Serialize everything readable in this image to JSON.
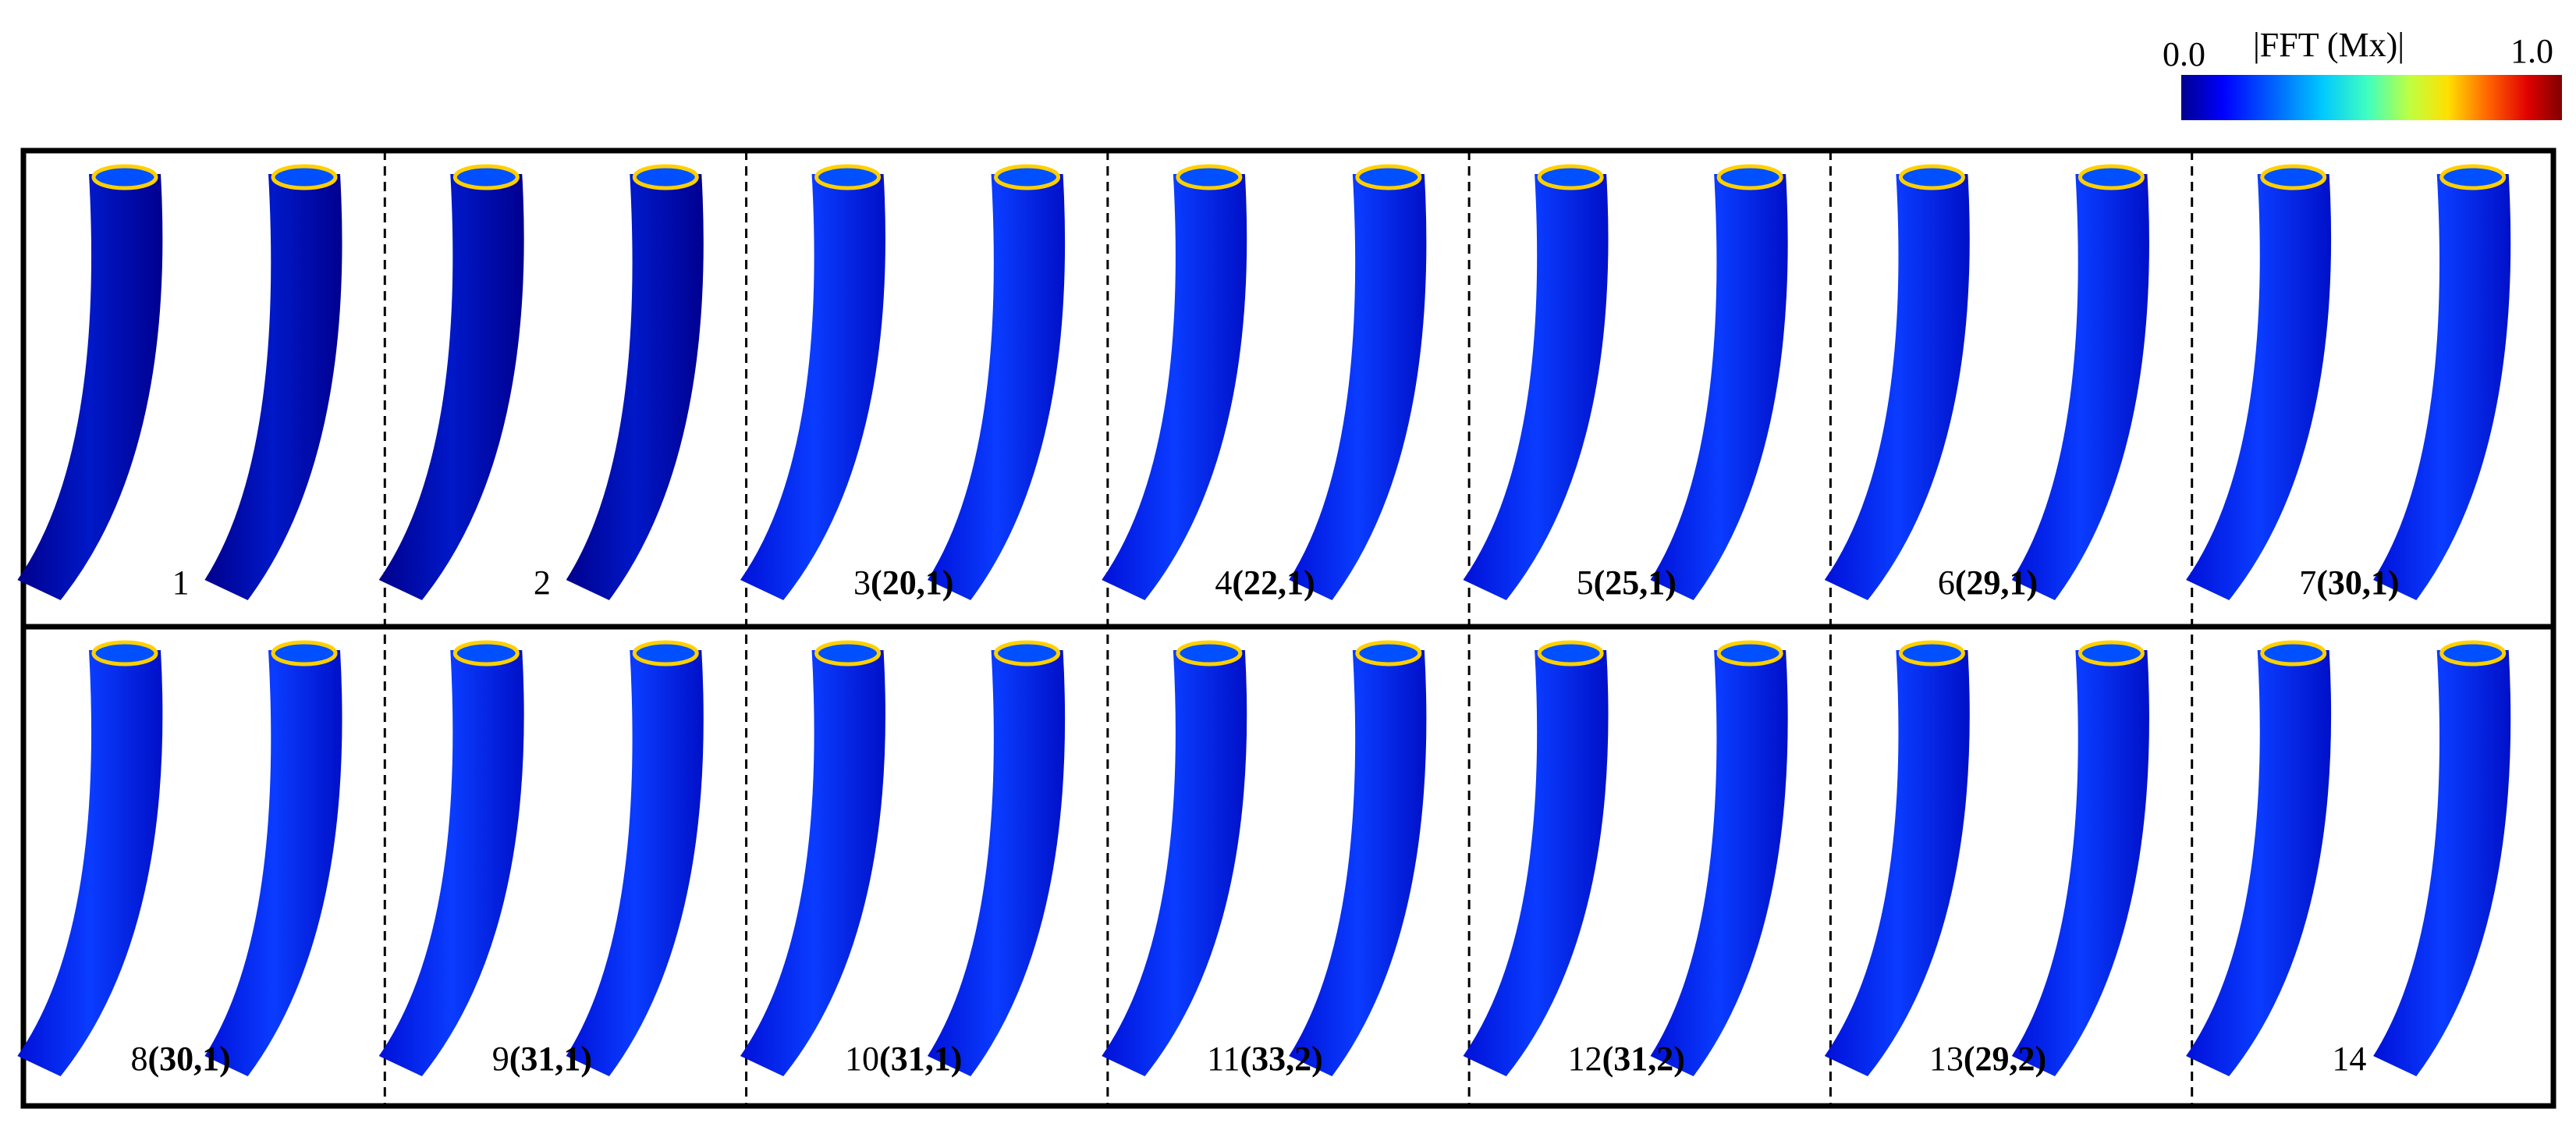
{
  "colorbar": {
    "min": "0.0",
    "max": "1.0",
    "title": "|FFT (Mx)|"
  },
  "rows": [
    [
      {
        "index": "1",
        "mode": ""
      },
      {
        "index": "2",
        "mode": ""
      },
      {
        "index": "3",
        "mode": "(20,1)"
      },
      {
        "index": "4",
        "mode": "(22,1)"
      },
      {
        "index": "5",
        "mode": "(25,1)"
      },
      {
        "index": "6",
        "mode": "(29,1)"
      },
      {
        "index": "7",
        "mode": "(30,1)"
      }
    ],
    [
      {
        "index": "8",
        "mode": "(30,1)"
      },
      {
        "index": "9",
        "mode": "(31,1)"
      },
      {
        "index": "10",
        "mode": "(31,1)"
      },
      {
        "index": "11",
        "mode": "(33,2)"
      },
      {
        "index": "12",
        "mode": "(31,2)"
      },
      {
        "index": "13",
        "mode": "(29,2)"
      },
      {
        "index": "14",
        "mode": ""
      }
    ]
  ]
}
